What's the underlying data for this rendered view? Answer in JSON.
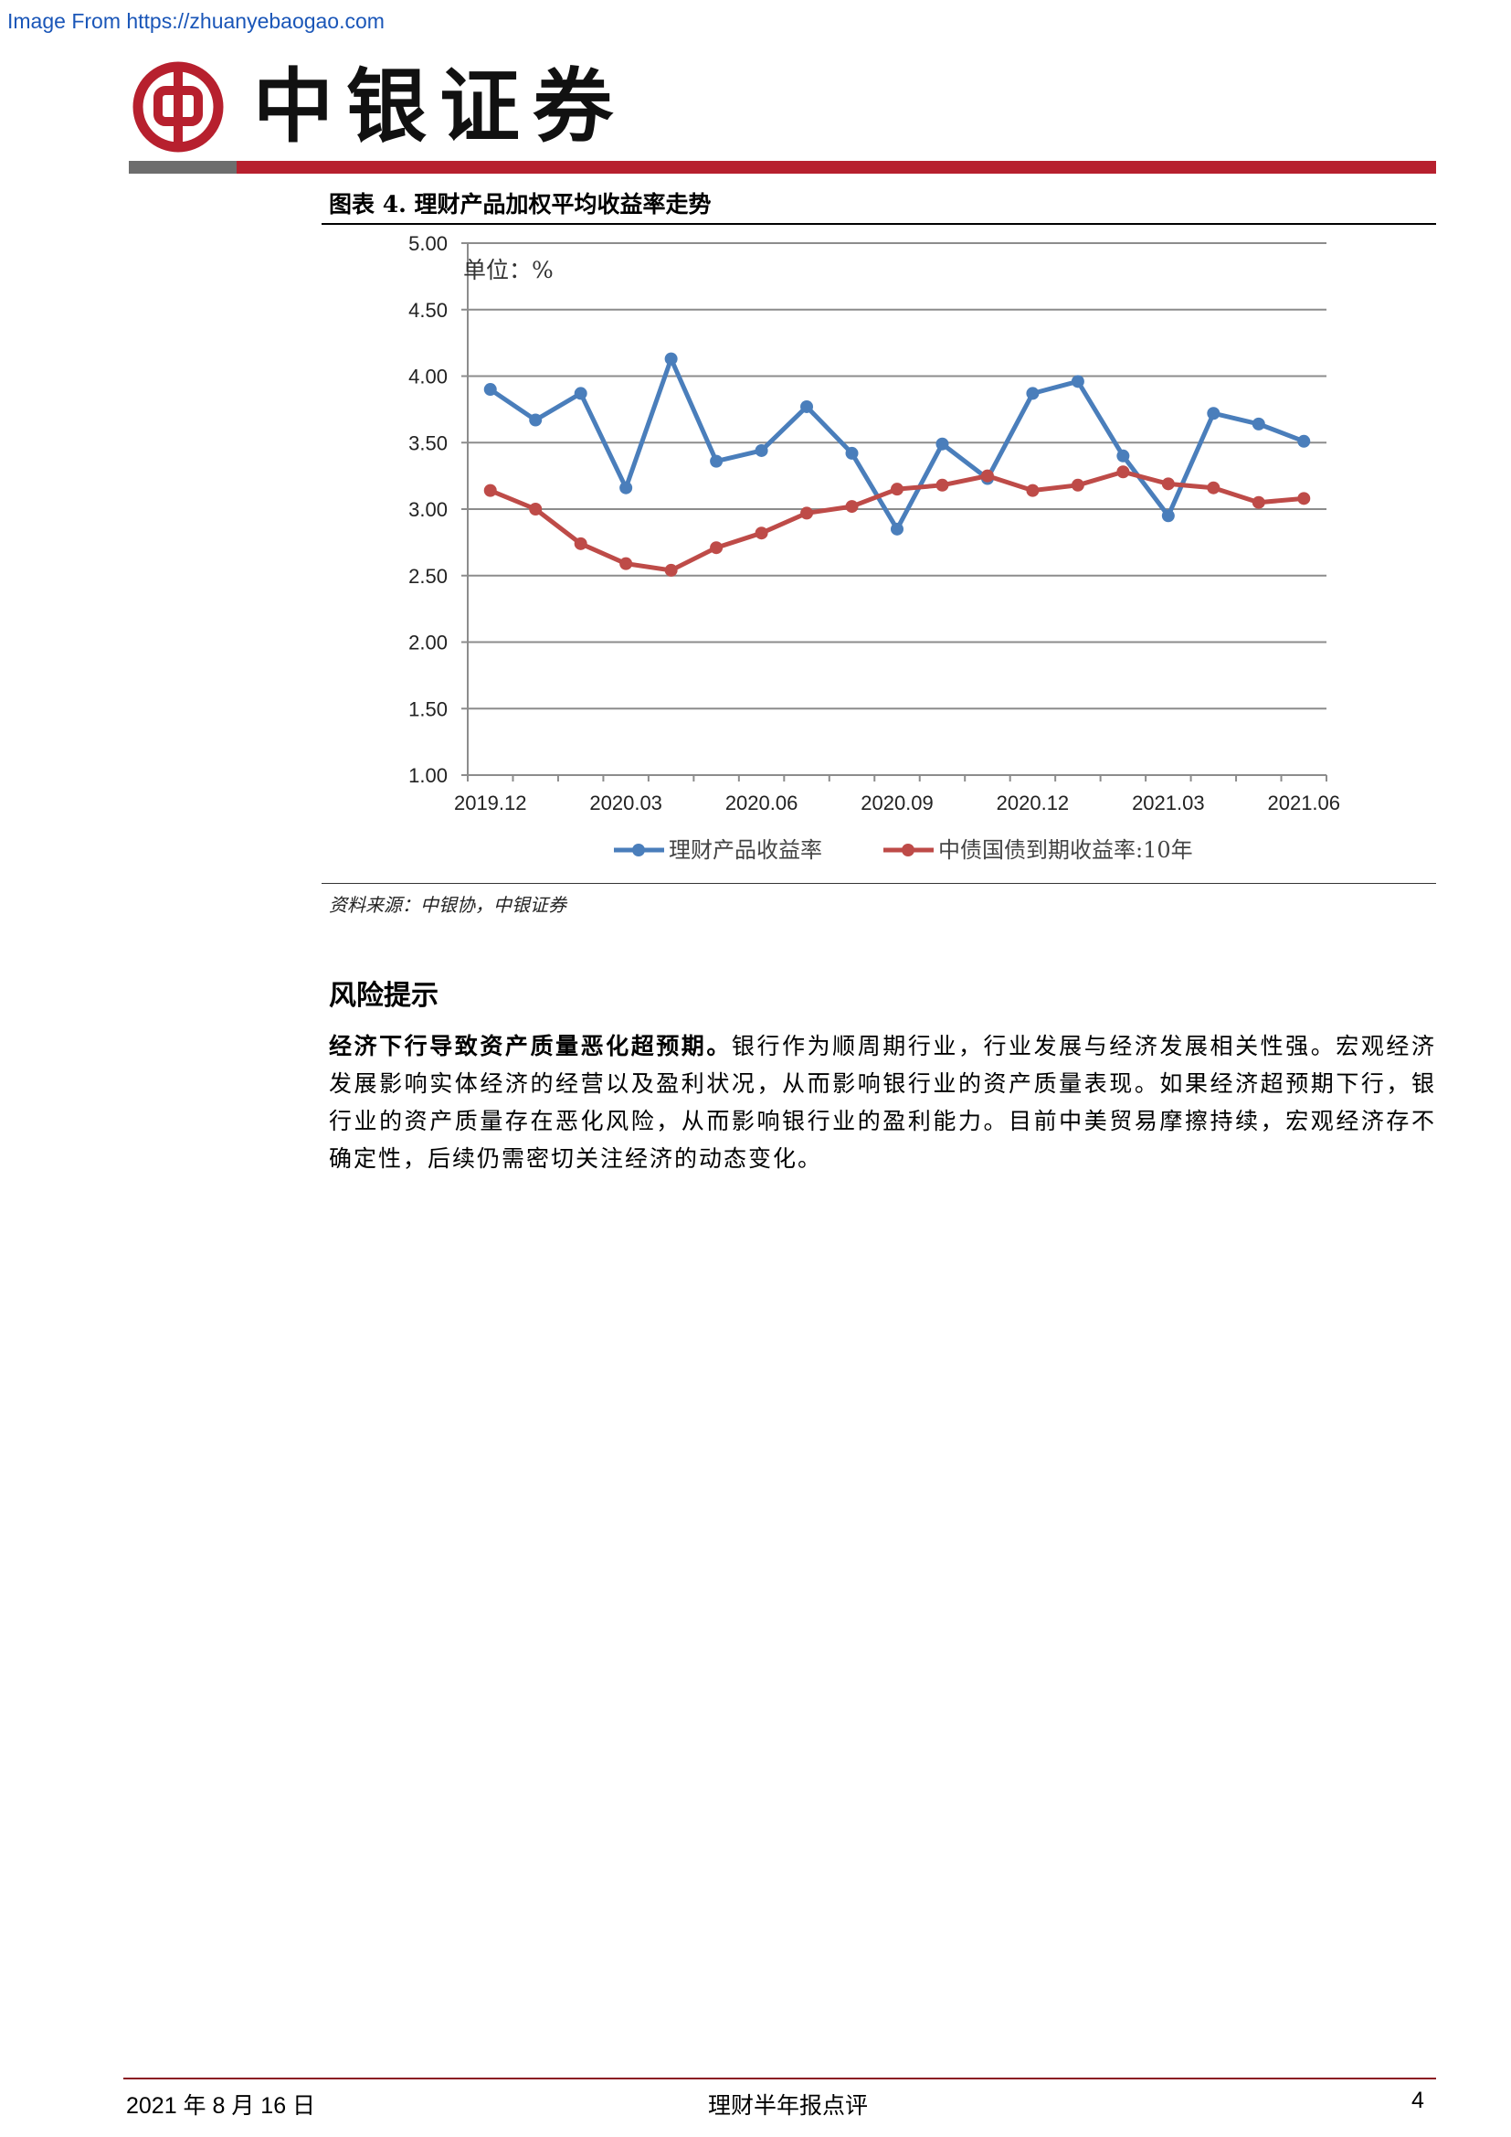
{
  "watermark": "Image From https://zhuanyebaogao.com",
  "header": {
    "brand": "中银证券"
  },
  "figure": {
    "title": "图表 4. 理财产品加权平均收益率走势",
    "source": "资料来源：中银协，中银证券"
  },
  "chart_data": {
    "type": "line",
    "unit_label": "单位：%",
    "x": [
      "2019.12",
      "2020.01",
      "2020.02",
      "2020.03",
      "2020.04",
      "2020.05",
      "2020.06",
      "2020.07",
      "2020.08",
      "2020.09",
      "2020.10",
      "2020.11",
      "2020.12",
      "2021.01",
      "2021.02",
      "2021.03",
      "2021.04",
      "2021.05",
      "2021.06"
    ],
    "x_tick_labels": [
      "2019.12",
      "2020.03",
      "2020.06",
      "2020.09",
      "2020.12",
      "2021.03",
      "2021.06"
    ],
    "y_ticks": [
      "1.00",
      "1.50",
      "2.00",
      "2.50",
      "3.00",
      "3.50",
      "4.00",
      "4.50",
      "5.00"
    ],
    "ylim": [
      1.0,
      5.0
    ],
    "grid": true,
    "legend_position": "bottom",
    "series": [
      {
        "name": "理财产品收益率",
        "color": "#4a7ebb",
        "values": [
          3.9,
          3.67,
          3.87,
          3.16,
          4.13,
          3.36,
          3.44,
          3.77,
          3.42,
          2.85,
          3.49,
          3.23,
          3.87,
          3.96,
          3.4,
          2.95,
          3.72,
          3.64,
          3.51
        ]
      },
      {
        "name": "中债国债到期收益率:10年",
        "color": "#be4b48",
        "values": [
          3.14,
          3.0,
          2.74,
          2.59,
          2.54,
          2.71,
          2.82,
          2.97,
          3.02,
          3.15,
          3.18,
          3.25,
          3.14,
          3.18,
          3.28,
          3.19,
          3.16,
          3.05,
          3.08
        ]
      }
    ]
  },
  "risk": {
    "heading": "风险提示",
    "lead": "经济下行导致资产质量恶化超预期。",
    "body": "银行作为顺周期行业，行业发展与经济发展相关性强。宏观经济发展影响实体经济的经营以及盈利状况，从而影响银行业的资产质量表现。如果经济超预期下行，银行业的资产质量存在恶化风险，从而影响银行业的盈利能力。目前中美贸易摩擦持续，宏观经济存不确定性，后续仍需密切关注经济的动态变化。"
  },
  "footer": {
    "date": "2021 年 8 月 16 日",
    "title": "理财半年报点评",
    "page": "4"
  }
}
